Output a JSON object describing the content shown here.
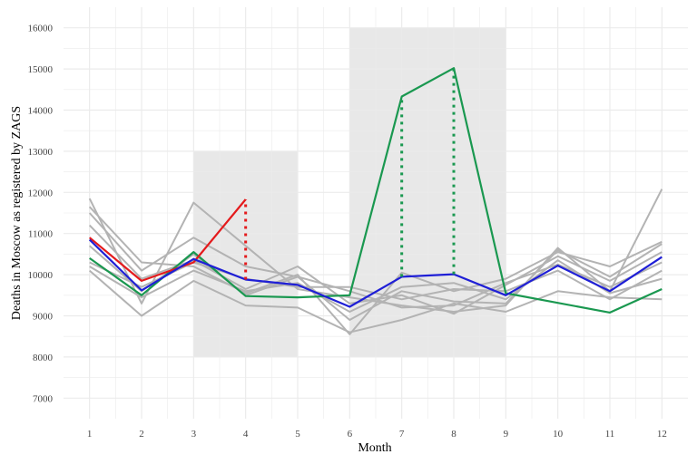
{
  "chart_data": {
    "type": "line",
    "title": "",
    "xlabel": "Month",
    "ylabel": "Deaths in Moscow as registered by ZAGS",
    "xlim": [
      0.5,
      12.5
    ],
    "ylim": [
      6500,
      16500
    ],
    "x_ticks": [
      1,
      2,
      3,
      4,
      5,
      6,
      7,
      8,
      9,
      10,
      11,
      12
    ],
    "y_ticks": [
      7000,
      8000,
      9000,
      10000,
      11000,
      12000,
      13000,
      14000,
      15000,
      16000
    ],
    "grid": true,
    "legend": "none",
    "colors": {
      "gray": "#b3b3b3",
      "green": "#1a9850",
      "red": "#e41a1c",
      "blue": "#1f1fd6",
      "shade": "#e8e8e8",
      "grid": "#ebebeb"
    },
    "shaded_regions": [
      {
        "x0": 3,
        "x1": 5,
        "y0": 8000,
        "y1": 13000
      },
      {
        "x0": 6,
        "x1": 9,
        "y0": 8000,
        "y1": 16000
      }
    ],
    "gray_series": [
      {
        "x": [
          1,
          2,
          3,
          4,
          5,
          6,
          7,
          8,
          9,
          10,
          11,
          12
        ],
        "values": [
          11850,
          9300,
          11750,
          10700,
          9650,
          9450,
          9250,
          9100,
          9250,
          10650,
          9600,
          12080
        ]
      },
      {
        "x": [
          1,
          2,
          3,
          4,
          5,
          6,
          7,
          8,
          9,
          10,
          11,
          12
        ],
        "values": [
          11650,
          10300,
          10200,
          9550,
          10000,
          8550,
          10050,
          9600,
          9900,
          10550,
          10200,
          10800
        ]
      },
      {
        "x": [
          1,
          2,
          3,
          4,
          5,
          6,
          7,
          8,
          9,
          10,
          11,
          12
        ],
        "values": [
          11500,
          10100,
          10900,
          10200,
          9950,
          8900,
          9600,
          9350,
          9300,
          10600,
          9950,
          10750
        ]
      },
      {
        "x": [
          1,
          2,
          3,
          4,
          5,
          6,
          7,
          8,
          9,
          10,
          11,
          12
        ],
        "values": [
          11200,
          9900,
          10350,
          9650,
          10200,
          9300,
          9500,
          9050,
          9750,
          10450,
          9850,
          10550
        ]
      },
      {
        "x": [
          1,
          2,
          3,
          4,
          5,
          6,
          7,
          8,
          9,
          10,
          11,
          12
        ],
        "values": [
          10700,
          9600,
          10500,
          9500,
          9950,
          9600,
          9200,
          9250,
          9800,
          10250,
          9700,
          10300
        ]
      },
      {
        "x": [
          1,
          2,
          3,
          4,
          5,
          6,
          7,
          8,
          9,
          10,
          11,
          12
        ],
        "values": [
          10300,
          9700,
          10300,
          9900,
          9700,
          9700,
          9400,
          9650,
          9600,
          10100,
          9400,
          10100
        ]
      },
      {
        "x": [
          1,
          2,
          3,
          4,
          5,
          6,
          7,
          8,
          9,
          10,
          11,
          12
        ],
        "values": [
          10100,
          9000,
          9850,
          9250,
          9200,
          8600,
          8900,
          9300,
          9100,
          9600,
          9450,
          9400
        ]
      },
      {
        "x": [
          1,
          2,
          3,
          4,
          5,
          6,
          7,
          8,
          9,
          10,
          11,
          12
        ],
        "values": [
          10200,
          9450,
          10100,
          9600,
          9800,
          9100,
          9700,
          9800,
          9400,
          10350,
          9550,
          9900
        ]
      }
    ],
    "series": [
      {
        "color": "green",
        "x": [
          1,
          2,
          3,
          4,
          5,
          6,
          7,
          8,
          9,
          11,
          12
        ],
        "values": [
          10400,
          9500,
          10550,
          9480,
          9450,
          9500,
          14330,
          15020,
          9550,
          9080,
          9650
        ]
      },
      {
        "color": "red",
        "x": [
          1,
          2,
          3,
          4
        ],
        "values": [
          10900,
          9850,
          10300,
          11830
        ]
      },
      {
        "color": "blue",
        "x": [
          1,
          2,
          3,
          4,
          5,
          6,
          7,
          8,
          9,
          10,
          11,
          12
        ],
        "values": [
          10850,
          9620,
          10380,
          9880,
          9750,
          9220,
          9950,
          10010,
          9500,
          10220,
          9600,
          10430
        ]
      }
    ],
    "dotted_segments": [
      {
        "color": "red",
        "x": 4,
        "from": 9880,
        "to": 11830
      },
      {
        "color": "green",
        "x": 7,
        "from": 9950,
        "to": 14330
      },
      {
        "color": "green",
        "x": 8,
        "from": 10010,
        "to": 15020
      }
    ]
  }
}
